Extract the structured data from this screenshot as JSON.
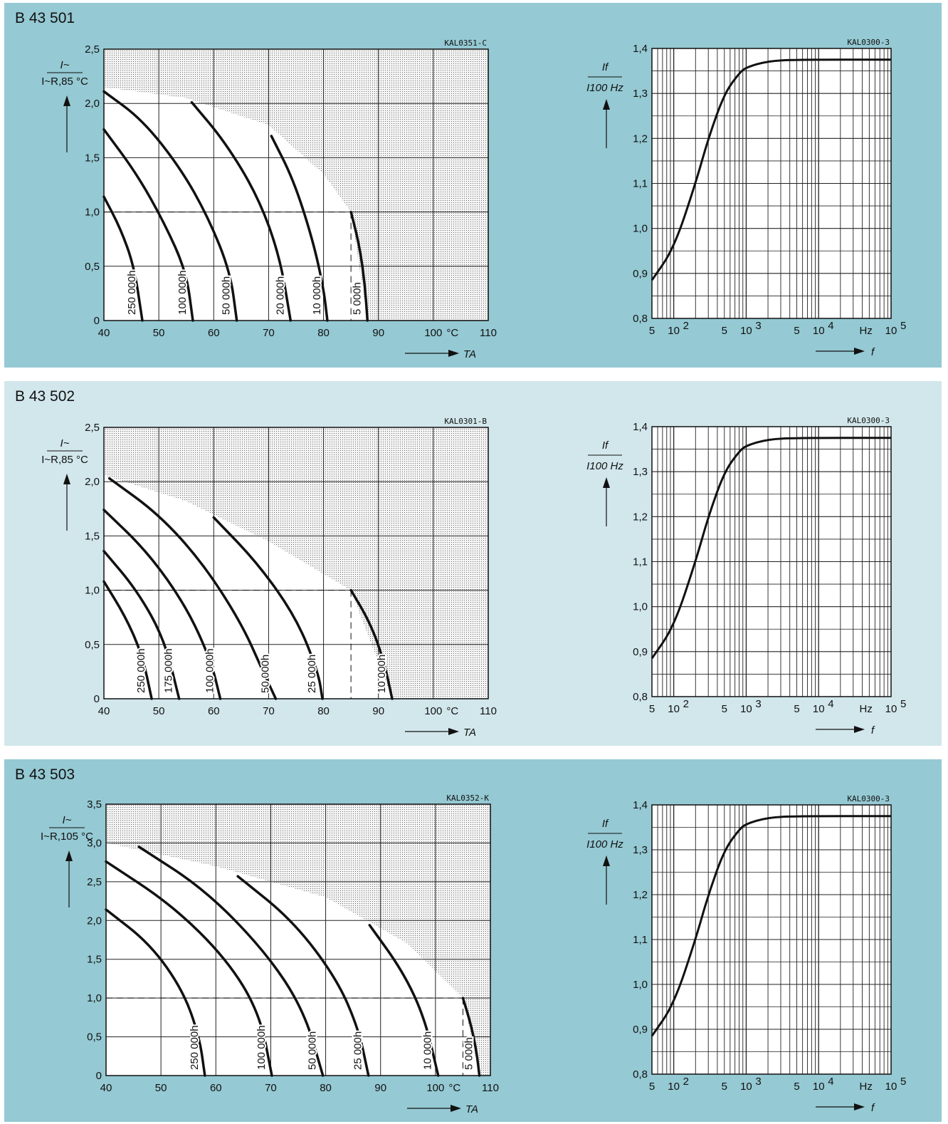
{
  "colors": {
    "panel_dark": "#95c9d3",
    "panel_light": "#d2e7ec",
    "shade": "#bdbdbd",
    "line": "#111111"
  },
  "panels": [
    {
      "title": "B 43 501",
      "bg": "#95c9d3",
      "life_chart": {
        "code": "KAL0351-C",
        "ylabel_num": "I~",
        "ylabel_den": "I~R,85 °C",
        "xlabel": "TA",
        "unit": "°C",
        "xlim": [
          40,
          110
        ],
        "ylim": [
          0,
          2.5
        ],
        "x_ticks": [
          "40",
          "50",
          "60",
          "70",
          "80",
          "90",
          "100",
          "°C",
          "110"
        ],
        "y_ticks": [
          "0",
          "0,5",
          "1,0",
          "1,5",
          "2,0",
          "2,5"
        ],
        "ref_point": [
          85,
          1.0
        ],
        "series": [
          {
            "name": "250 000h",
            "points": [
              [
                40,
                1.14
              ],
              [
                43,
                0.85
              ],
              [
                45.5,
                0.5
              ],
              [
                47,
                0
              ]
            ]
          },
          {
            "name": "100 000h",
            "points": [
              [
                40,
                1.76
              ],
              [
                46,
                1.35
              ],
              [
                51,
                0.9
              ],
              [
                55,
                0.45
              ],
              [
                56.2,
                0
              ]
            ]
          },
          {
            "name": "50 000h",
            "points": [
              [
                40,
                2.11
              ],
              [
                47,
                1.85
              ],
              [
                54,
                1.4
              ],
              [
                59,
                0.95
              ],
              [
                63,
                0.45
              ],
              [
                64.2,
                0
              ]
            ]
          },
          {
            "name": "20 000h",
            "points": [
              [
                56,
                2.01
              ],
              [
                62,
                1.65
              ],
              [
                68,
                1.15
              ],
              [
                72,
                0.6
              ],
              [
                74,
                0
              ]
            ]
          },
          {
            "name": "10 000h",
            "points": [
              [
                70.5,
                1.7
              ],
              [
                74.5,
                1.3
              ],
              [
                78,
                0.75
              ],
              [
                80,
                0.3
              ],
              [
                80.7,
                0
              ]
            ]
          },
          {
            "name": "5 000h",
            "points": [
              [
                85,
                1.0
              ],
              [
                86.5,
                0.7
              ],
              [
                87.5,
                0.35
              ],
              [
                88,
                0
              ]
            ]
          }
        ],
        "boundary": [
          [
            40,
            2.15
          ],
          [
            55,
            2.05
          ],
          [
            70,
            1.8
          ],
          [
            80,
            1.35
          ],
          [
            85,
            1.0
          ],
          [
            88,
            0
          ]
        ]
      },
      "freq_chart": {
        "code": "KAL0300-3",
        "ylabel_num": "If",
        "ylabel_den": "I100 Hz",
        "xlabel": "f",
        "unit": "Hz",
        "xlim": [
          50,
          100000
        ],
        "ylim": [
          0.8,
          1.4
        ],
        "x_ticks": [
          "5",
          "10",
          "2",
          "5",
          "10",
          "3",
          "5",
          "10",
          "4",
          "Hz",
          "10",
          "5"
        ],
        "y_ticks": [
          "0,8",
          "0,9",
          "1,0",
          "1,1",
          "1,2",
          "1,3",
          "1,4"
        ],
        "series": [
          {
            "points": [
              [
                50,
                0.885
              ],
              [
                100,
                0.955
              ],
              [
                200,
                1.1
              ],
              [
                300,
                1.2
              ],
              [
                500,
                1.3
              ],
              [
                800,
                1.345
              ],
              [
                1000,
                1.358
              ],
              [
                2000,
                1.372
              ],
              [
                5000,
                1.375
              ],
              [
                100000,
                1.375
              ]
            ]
          }
        ]
      }
    },
    {
      "title": "B 43 502",
      "bg": "#d2e7ec",
      "life_chart": {
        "code": "KAL0301-B",
        "ylabel_num": "I~",
        "ylabel_den": "I~R,85 °C",
        "xlabel": "TA",
        "unit": "°C",
        "xlim": [
          40,
          110
        ],
        "ylim": [
          0,
          2.5
        ],
        "x_ticks": [
          "40",
          "50",
          "60",
          "70",
          "80",
          "90",
          "100",
          "°C",
          "110"
        ],
        "y_ticks": [
          "0",
          "0,5",
          "1,0",
          "1,5",
          "2,0",
          "2,5"
        ],
        "ref_point": [
          85,
          1.0
        ],
        "series": [
          {
            "name": "250 000h",
            "points": [
              [
                40,
                1.08
              ],
              [
                44,
                0.75
              ],
              [
                47,
                0.4
              ],
              [
                48.7,
                0
              ]
            ]
          },
          {
            "name": "175 000h",
            "points": [
              [
                40,
                1.36
              ],
              [
                46,
                1.0
              ],
              [
                51,
                0.55
              ],
              [
                53.7,
                0
              ]
            ]
          },
          {
            "name": "100 000h",
            "points": [
              [
                40,
                1.74
              ],
              [
                48,
                1.35
              ],
              [
                55,
                0.85
              ],
              [
                59.5,
                0.35
              ],
              [
                61.2,
                0
              ]
            ]
          },
          {
            "name": "50 000h",
            "points": [
              [
                41,
                2.03
              ],
              [
                50,
                1.7
              ],
              [
                58,
                1.25
              ],
              [
                65,
                0.7
              ],
              [
                69,
                0.25
              ],
              [
                71.3,
                0
              ]
            ]
          },
          {
            "name": "25 000h",
            "points": [
              [
                60,
                1.67
              ],
              [
                68,
                1.25
              ],
              [
                75,
                0.75
              ],
              [
                79,
                0.25
              ],
              [
                79.8,
                0
              ]
            ]
          },
          {
            "name": "10 000h",
            "points": [
              [
                85,
                1.0
              ],
              [
                88.5,
                0.7
              ],
              [
                91,
                0.35
              ],
              [
                92.5,
                0
              ]
            ]
          }
        ],
        "boundary": [
          [
            40,
            2.06
          ],
          [
            55,
            1.82
          ],
          [
            70,
            1.45
          ],
          [
            80,
            1.15
          ],
          [
            85,
            1.0
          ],
          [
            92.5,
            0
          ]
        ]
      },
      "freq_chart": {
        "code": "KAL0300-3",
        "ylabel_num": "If",
        "ylabel_den": "I100 Hz",
        "xlabel": "f",
        "unit": "Hz",
        "xlim": [
          50,
          100000
        ],
        "ylim": [
          0.8,
          1.4
        ],
        "x_ticks": [
          "5",
          "10",
          "2",
          "5",
          "10",
          "3",
          "5",
          "10",
          "4",
          "Hz",
          "10",
          "5"
        ],
        "y_ticks": [
          "0,8",
          "0,9",
          "1,0",
          "1,1",
          "1,2",
          "1,3",
          "1,4"
        ],
        "series": [
          {
            "points": [
              [
                50,
                0.885
              ],
              [
                100,
                0.955
              ],
              [
                200,
                1.1
              ],
              [
                300,
                1.2
              ],
              [
                500,
                1.3
              ],
              [
                800,
                1.345
              ],
              [
                1000,
                1.358
              ],
              [
                2000,
                1.372
              ],
              [
                5000,
                1.375
              ],
              [
                100000,
                1.375
              ]
            ]
          }
        ]
      }
    },
    {
      "title": "B 43 503",
      "bg": "#95c9d3",
      "life_chart": {
        "code": "KAL0352-K",
        "ylabel_num": "I~",
        "ylabel_den": "I~R,105 °C",
        "xlabel": "TA",
        "unit": "°C",
        "xlim": [
          40,
          110
        ],
        "ylim": [
          0,
          3.5
        ],
        "x_ticks": [
          "40",
          "50",
          "60",
          "70",
          "80",
          "90",
          "100",
          "°C",
          "110"
        ],
        "y_ticks": [
          "0",
          "0,5",
          "1,0",
          "1,5",
          "2,0",
          "2,5",
          "3,0",
          "3,5"
        ],
        "ref_point": [
          105,
          1.0
        ],
        "series": [
          {
            "name": "250 000h",
            "points": [
              [
                40,
                2.14
              ],
              [
                48,
                1.7
              ],
              [
                54,
                1.1
              ],
              [
                57,
                0.5
              ],
              [
                58,
                0
              ]
            ]
          },
          {
            "name": "100 000h",
            "points": [
              [
                40,
                2.76
              ],
              [
                52,
                2.2
              ],
              [
                62,
                1.5
              ],
              [
                68,
                0.8
              ],
              [
                70.2,
                0
              ]
            ]
          },
          {
            "name": "50 000h",
            "points": [
              [
                46,
                2.95
              ],
              [
                58,
                2.4
              ],
              [
                69,
                1.6
              ],
              [
                76,
                0.85
              ],
              [
                79.5,
                0
              ]
            ]
          },
          {
            "name": "25 000h",
            "points": [
              [
                64,
                2.57
              ],
              [
                74,
                2.0
              ],
              [
                82,
                1.25
              ],
              [
                86,
                0.6
              ],
              [
                87.8,
                0
              ]
            ]
          },
          {
            "name": "10 000h",
            "points": [
              [
                88,
                1.94
              ],
              [
                94,
                1.35
              ],
              [
                98,
                0.75
              ],
              [
                100.5,
                0
              ]
            ]
          },
          {
            "name": "5 000h",
            "points": [
              [
                105,
                1.0
              ],
              [
                106.5,
                0.65
              ],
              [
                107.5,
                0.3
              ],
              [
                108,
                0
              ]
            ]
          }
        ],
        "boundary": [
          [
            40,
            3.0
          ],
          [
            60,
            2.7
          ],
          [
            80,
            2.3
          ],
          [
            95,
            1.7
          ],
          [
            105,
            1.0
          ],
          [
            108,
            0
          ]
        ]
      },
      "freq_chart": {
        "code": "KAL0300-3",
        "ylabel_num": "If",
        "ylabel_den": "I100 Hz",
        "xlabel": "f",
        "unit": "Hz",
        "xlim": [
          50,
          100000
        ],
        "ylim": [
          0.8,
          1.4
        ],
        "x_ticks": [
          "5",
          "10",
          "2",
          "5",
          "10",
          "3",
          "5",
          "10",
          "4",
          "Hz",
          "10",
          "5"
        ],
        "y_ticks": [
          "0,8",
          "0,9",
          "1,0",
          "1,1",
          "1,2",
          "1,3",
          "1,4"
        ],
        "series": [
          {
            "points": [
              [
                50,
                0.885
              ],
              [
                100,
                0.955
              ],
              [
                200,
                1.1
              ],
              [
                300,
                1.2
              ],
              [
                500,
                1.3
              ],
              [
                800,
                1.345
              ],
              [
                1000,
                1.358
              ],
              [
                2000,
                1.372
              ],
              [
                5000,
                1.375
              ],
              [
                100000,
                1.375
              ]
            ]
          }
        ]
      }
    }
  ]
}
